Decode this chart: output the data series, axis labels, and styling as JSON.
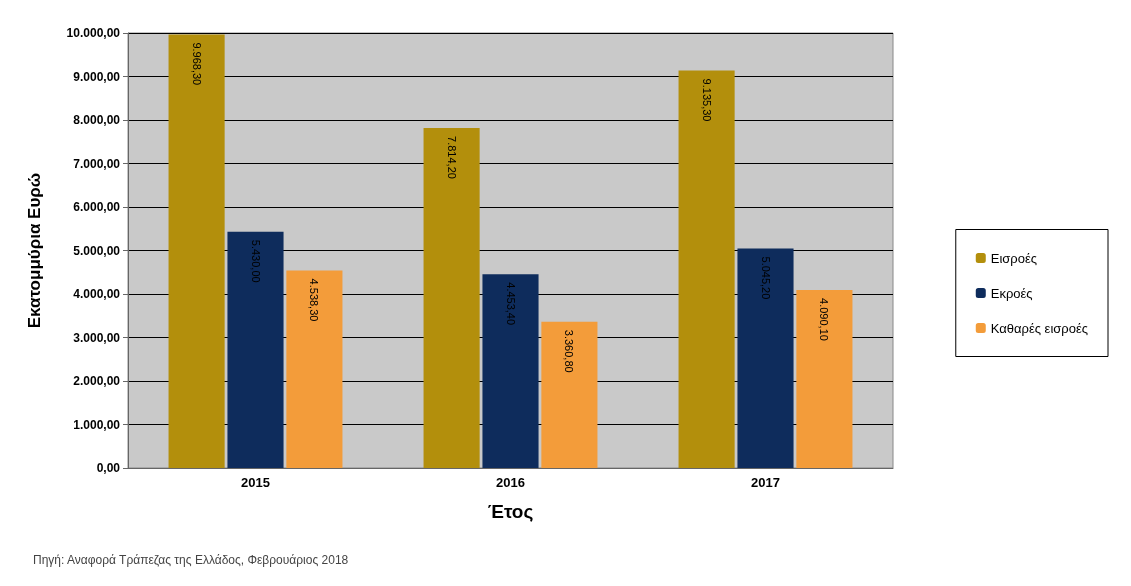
{
  "chart_data": {
    "type": "bar",
    "xlabel": "Έτος",
    "ylabel": "Εκατομμύρια Ευρώ",
    "categories": [
      "2015",
      "2016",
      "2017"
    ],
    "series": [
      {
        "name": "Εισροές",
        "color": "#b38f0c",
        "values": [
          9968.3,
          7814.2,
          9135.3
        ],
        "value_labels": [
          "9.968,30",
          "7.814,20",
          "9.135,30"
        ]
      },
      {
        "name": "Εκροές",
        "color": "#0e2c5c",
        "values": [
          5430.0,
          4453.4,
          5045.2
        ],
        "value_labels": [
          "5.430,00",
          "4.453,40",
          "5.045,20"
        ]
      },
      {
        "name": "Καθαρές εισροές",
        "color": "#f39c3a",
        "values": [
          4538.3,
          3360.8,
          4090.1
        ],
        "value_labels": [
          "4.538,30",
          "3.360,80",
          "4.090,10"
        ]
      }
    ],
    "ylim": [
      0,
      10000
    ],
    "yticks": [
      {
        "value": 0,
        "label": "0,00"
      },
      {
        "value": 1000,
        "label": "1.000,00"
      },
      {
        "value": 2000,
        "label": "2.000,00"
      },
      {
        "value": 3000,
        "label": "3.000,00"
      },
      {
        "value": 4000,
        "label": "4.000,00"
      },
      {
        "value": 5000,
        "label": "5.000,00"
      },
      {
        "value": 6000,
        "label": "6.000,00"
      },
      {
        "value": 7000,
        "label": "7.000,00"
      },
      {
        "value": 8000,
        "label": "8.000,00"
      },
      {
        "value": 9000,
        "label": "9.000,00"
      },
      {
        "value": 10000,
        "label": "10.000,00"
      }
    ],
    "grid": "y",
    "legend": "right",
    "annotations": [
      "Πηγή: Αναφορά Τράπεζας της Ελλάδος, Φεβρουάριος 2018"
    ]
  }
}
